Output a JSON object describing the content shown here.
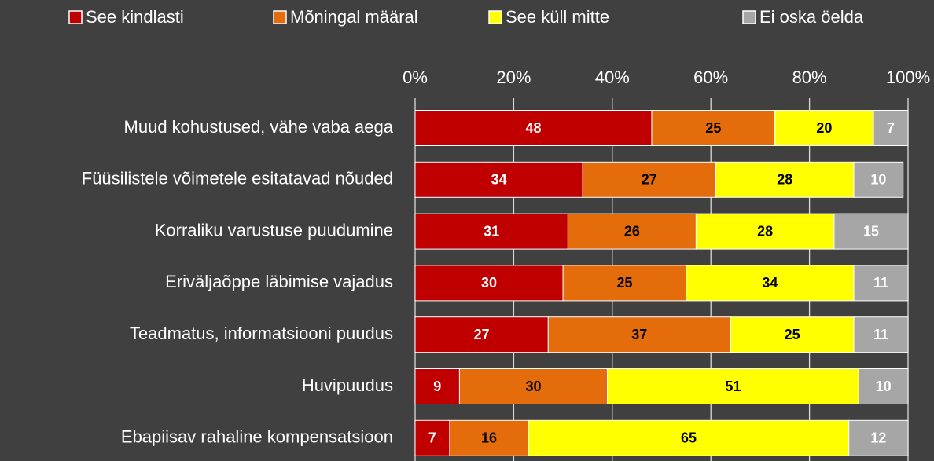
{
  "chart_data": {
    "type": "stacked-bar-horizontal",
    "categories": [
      "Muud kohustused, vähe vaba aega",
      "Füüsilistele võimetele esitatavad nõuded",
      "Korraliku varustuse puudumine",
      "Eriväljaõppe läbimise vajadus",
      "Teadmatus, informatsiooni puudus",
      "Huvipuudus",
      "Ebapiisav rahaline kompensatsioon"
    ],
    "series": [
      {
        "name": "See kindlasti",
        "color": "#c00000",
        "values": [
          48,
          34,
          31,
          30,
          27,
          9,
          7
        ]
      },
      {
        "name": "Mõningal määral",
        "color": "#e46c0a",
        "values": [
          25,
          27,
          26,
          25,
          37,
          30,
          16
        ]
      },
      {
        "name": "See küll mitte",
        "color": "#ffff00",
        "values": [
          20,
          28,
          28,
          34,
          25,
          51,
          65
        ]
      },
      {
        "name": "Ei oska öelda",
        "color": "#a6a6a6",
        "values": [
          7,
          10,
          15,
          11,
          11,
          10,
          12
        ]
      }
    ],
    "xlim": [
      0,
      100
    ],
    "xticks": [
      {
        "value": 0,
        "label": "0%"
      },
      {
        "value": 20,
        "label": "20%"
      },
      {
        "value": 40,
        "label": "40%"
      },
      {
        "value": 60,
        "label": "60%"
      },
      {
        "value": 80,
        "label": "80%"
      },
      {
        "value": 100,
        "label": "100%"
      }
    ],
    "grid": true,
    "legend": "top"
  }
}
